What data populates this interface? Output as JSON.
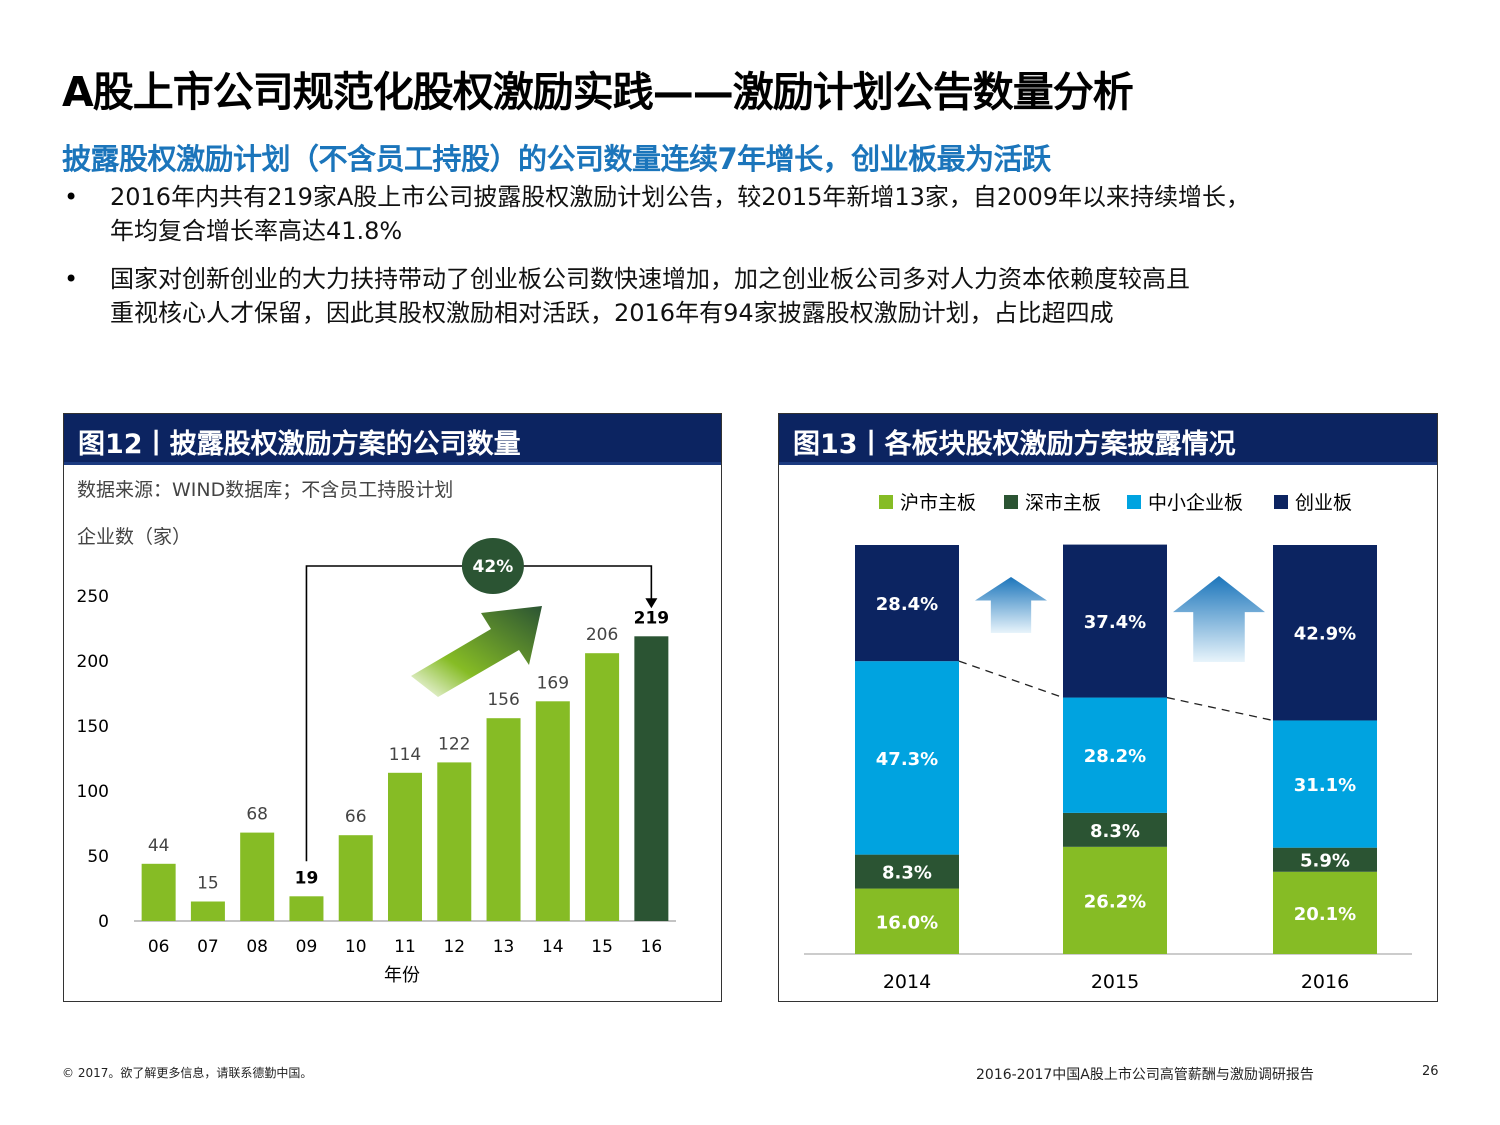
{
  "title": "A股上市公司规范化股权激励实践——激励计划公告数量分析",
  "subtitle": "披露股权激励计划（不含员工持股）的公司数量连续7年增长，创业板最为活跃",
  "bullets": [
    {
      "dot": "•",
      "line1": "2016年内共有219家A股上市公司披露股权激励计划公告，较2015年新增13家，自2009年以来持续增长，",
      "line2": "年均复合增长率高达41.8%"
    },
    {
      "dot": "•",
      "line1": "国家对创新创业的大力扶持带动了创业板公司数快速增加，加之创业板公司多对人力资本依赖度较高且",
      "line2": "重视核心人才保留，因此其股权激励相对活跃，2016年有94家披露股权激励计划，占比超四成"
    }
  ],
  "fig12": {
    "header": "图12丨披露股权激励方案的公司数量",
    "source": "数据来源：WIND数据库；不含员工持股计划",
    "ylabel": "企业数（家）",
    "xlabel": "年份",
    "cagr_badge": "42%"
  },
  "fig13": {
    "header": "图13丨各板块股权激励方案披露情况"
  },
  "footer": {
    "left": "© 2017。欲了解更多信息，请联系德勤中国。",
    "right": "2016-2017中国A股上市公司高管薪酬与激励调研报告",
    "page": "26"
  },
  "colors": {
    "green": "#86bc25",
    "dark_green": "#2b5433",
    "light_blue": "#00a3e0",
    "navy": "#0c2461",
    "subtitle_blue": "#1b75bb",
    "badge_green": "#2b5433"
  },
  "chart_data": [
    {
      "type": "bar",
      "title": "披露股权激励方案的公司数量",
      "categories": [
        "06",
        "07",
        "08",
        "09",
        "10",
        "11",
        "12",
        "13",
        "14",
        "15",
        "16"
      ],
      "values": [
        44,
        15,
        68,
        19,
        66,
        114,
        122,
        156,
        169,
        206,
        219
      ],
      "ylim": [
        0,
        250
      ],
      "yticks": [
        0,
        50,
        100,
        150,
        200,
        250
      ],
      "xlabel": "年份",
      "ylabel": "企业数（家）",
      "annotation": "42%"
    },
    {
      "type": "bar",
      "stacked": true,
      "title": "各板块股权激励方案披露情况",
      "categories": [
        "2014",
        "2015",
        "2016"
      ],
      "series": [
        {
          "name": "沪市主板",
          "values": [
            16.0,
            26.2,
            20.1
          ],
          "labels": [
            "16.0%",
            "26.2%",
            "20.1%"
          ]
        },
        {
          "name": "深市主板",
          "values": [
            8.3,
            8.3,
            5.9
          ],
          "labels": [
            "8.3%",
            "8.3%",
            "5.9%"
          ]
        },
        {
          "name": "中小企业板",
          "values": [
            47.3,
            28.2,
            31.1
          ],
          "labels": [
            "47.3%",
            "28.2%",
            "31.1%"
          ]
        },
        {
          "name": "创业板",
          "values": [
            28.4,
            37.4,
            42.9
          ],
          "labels": [
            "28.4%",
            "37.4%",
            "42.9%"
          ]
        }
      ],
      "legend": "top",
      "ylim": [
        0,
        100
      ]
    }
  ]
}
